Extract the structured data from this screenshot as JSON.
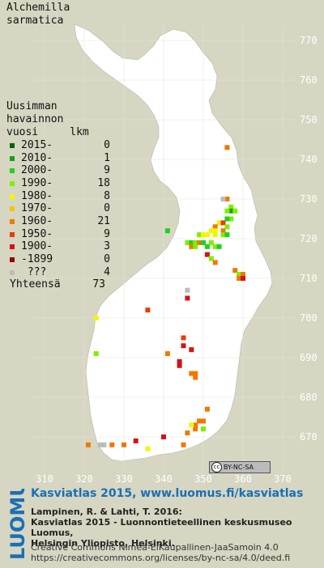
{
  "title": "Alchemilla\nsarmatica",
  "legend": {
    "header": "Uusimman\nhavainnon\nvuosi     lkm",
    "rows": [
      {
        "label": "2015-",
        "count": "0",
        "color": "#006400"
      },
      {
        "label": "2010-",
        "count": "1",
        "color": "#16a016"
      },
      {
        "label": "2000-",
        "count": "9",
        "color": "#1ed21e"
      },
      {
        "label": "1990-",
        "count": "18",
        "color": "#7cf000"
      },
      {
        "label": "1980-",
        "count": "8",
        "color": "#f5f500"
      },
      {
        "label": "1970-",
        "count": "0",
        "color": "#f0c800"
      },
      {
        "label": "1960-",
        "count": "21",
        "color": "#f07800"
      },
      {
        "label": "1950-",
        "count": "9",
        "color": "#e83c0a"
      },
      {
        "label": "1900-",
        "count": "3",
        "color": "#d21414"
      },
      {
        "label": "-1899",
        "count": "0",
        "color": "#8c0a0a"
      },
      {
        "label": " ???",
        "count": "4",
        "color": "#bcbcbc"
      }
    ],
    "total_label": "Yhteensä",
    "total_count": "73"
  },
  "axes": {
    "y_ticks": [
      "770",
      "760",
      "750",
      "740",
      "730",
      "720",
      "710",
      "700",
      "690",
      "680",
      "670"
    ],
    "x_ticks": [
      "310",
      "320",
      "330",
      "340",
      "350",
      "360",
      "370"
    ]
  },
  "points": [
    {
      "e": 356,
      "n": 743,
      "c": 6
    },
    {
      "e": 356,
      "n": 730,
      "c": 6
    },
    {
      "e": 355,
      "n": 730,
      "c": 10
    },
    {
      "e": 357,
      "n": 728,
      "c": 3
    },
    {
      "e": 357,
      "n": 727,
      "c": 1
    },
    {
      "e": 356,
      "n": 727,
      "c": 3
    },
    {
      "e": 358,
      "n": 727,
      "c": 3
    },
    {
      "e": 357,
      "n": 725,
      "c": 3
    },
    {
      "e": 356,
      "n": 725,
      "c": 2
    },
    {
      "e": 354,
      "n": 724,
      "c": 4
    },
    {
      "e": 355,
      "n": 724,
      "c": 7
    },
    {
      "e": 353,
      "n": 723,
      "c": 6
    },
    {
      "e": 356,
      "n": 723,
      "c": 3
    },
    {
      "e": 352,
      "n": 722,
      "c": 4
    },
    {
      "e": 353,
      "n": 722,
      "c": 4
    },
    {
      "e": 355,
      "n": 722,
      "c": 6
    },
    {
      "e": 349,
      "n": 721,
      "c": 3
    },
    {
      "e": 350,
      "n": 721,
      "c": 4
    },
    {
      "e": 351,
      "n": 721,
      "c": 4
    },
    {
      "e": 353,
      "n": 721,
      "c": 4
    },
    {
      "e": 355,
      "n": 721,
      "c": 3
    },
    {
      "e": 356,
      "n": 721,
      "c": 2
    },
    {
      "e": 341,
      "n": 722,
      "c": 2
    },
    {
      "e": 346,
      "n": 719,
      "c": 3
    },
    {
      "e": 347,
      "n": 719,
      "c": 2
    },
    {
      "e": 348,
      "n": 719,
      "c": 3
    },
    {
      "e": 349,
      "n": 719,
      "c": 6
    },
    {
      "e": 350,
      "n": 719,
      "c": 2
    },
    {
      "e": 352,
      "n": 719,
      "c": 3
    },
    {
      "e": 347,
      "n": 718,
      "c": 6
    },
    {
      "e": 348,
      "n": 718,
      "c": 3
    },
    {
      "e": 351,
      "n": 718,
      "c": 2
    },
    {
      "e": 353,
      "n": 718,
      "c": 3
    },
    {
      "e": 354,
      "n": 718,
      "c": 2
    },
    {
      "e": 351,
      "n": 716,
      "c": 8
    },
    {
      "e": 352,
      "n": 715,
      "c": 3
    },
    {
      "e": 353,
      "n": 714,
      "c": 6
    },
    {
      "e": 358,
      "n": 712,
      "c": 6
    },
    {
      "e": 359,
      "n": 711,
      "c": 3
    },
    {
      "e": 360,
      "n": 711,
      "c": 6
    },
    {
      "e": 359,
      "n": 710,
      "c": 6
    },
    {
      "e": 360,
      "n": 710,
      "c": 8
    },
    {
      "e": 346,
      "n": 707,
      "c": 10
    },
    {
      "e": 346,
      "n": 705,
      "c": 8
    },
    {
      "e": 323,
      "n": 700,
      "c": 4
    },
    {
      "e": 336,
      "n": 702,
      "c": 7
    },
    {
      "e": 345,
      "n": 695,
      "c": 7
    },
    {
      "e": 345,
      "n": 693,
      "c": 8
    },
    {
      "e": 347,
      "n": 692,
      "c": 8
    },
    {
      "e": 341,
      "n": 691,
      "c": 6
    },
    {
      "e": 323,
      "n": 691,
      "c": 3
    },
    {
      "e": 344,
      "n": 689,
      "c": 8
    },
    {
      "e": 344,
      "n": 688,
      "c": 8
    },
    {
      "e": 347,
      "n": 686,
      "c": 6
    },
    {
      "e": 348,
      "n": 686,
      "c": 6
    },
    {
      "e": 348,
      "n": 685,
      "c": 6
    },
    {
      "e": 351,
      "n": 677,
      "c": 6
    },
    {
      "e": 350,
      "n": 674,
      "c": 6
    },
    {
      "e": 348,
      "n": 673,
      "c": 6
    },
    {
      "e": 348,
      "n": 672,
      "c": 6
    },
    {
      "e": 347,
      "n": 673,
      "c": 4
    },
    {
      "e": 350,
      "n": 672,
      "c": 3
    },
    {
      "e": 340,
      "n": 670,
      "c": 8
    },
    {
      "e": 333,
      "n": 669,
      "c": 8
    },
    {
      "e": 336,
      "n": 667,
      "c": 4
    },
    {
      "e": 327,
      "n": 668,
      "c": 6
    },
    {
      "e": 325,
      "n": 668,
      "c": 10
    },
    {
      "e": 324,
      "n": 668,
      "c": 10
    },
    {
      "e": 321,
      "n": 668,
      "c": 6
    },
    {
      "e": 330,
      "n": 668,
      "c": 6
    },
    {
      "e": 345,
      "n": 668,
      "c": 6
    },
    {
      "e": 346,
      "n": 671,
      "c": 6
    },
    {
      "e": 349,
      "n": 674,
      "c": 6
    }
  ],
  "cc_badge": "BY-NC-SA",
  "cc_symbol": "cc",
  "footer": {
    "logo": "LUOMUS",
    "link": "Kasviatlas 2015, www.luomus.fi/kasviatlas",
    "citation_1": "Lampinen, R. & Lahti, T. 2016:",
    "citation_2": "Kasviatlas 2015 - Luonnontieteellinen keskusmuseo Luomus,",
    "citation_3": "Helsingin Yliopisto, Helsinki.",
    "license_1": "Creative Commons Nimeä-EiKaupallinen-JaaSamoin 4.0",
    "license_2": "https://creativecommons.org/licenses/by-nc-sa/4.0/deed.fi"
  }
}
